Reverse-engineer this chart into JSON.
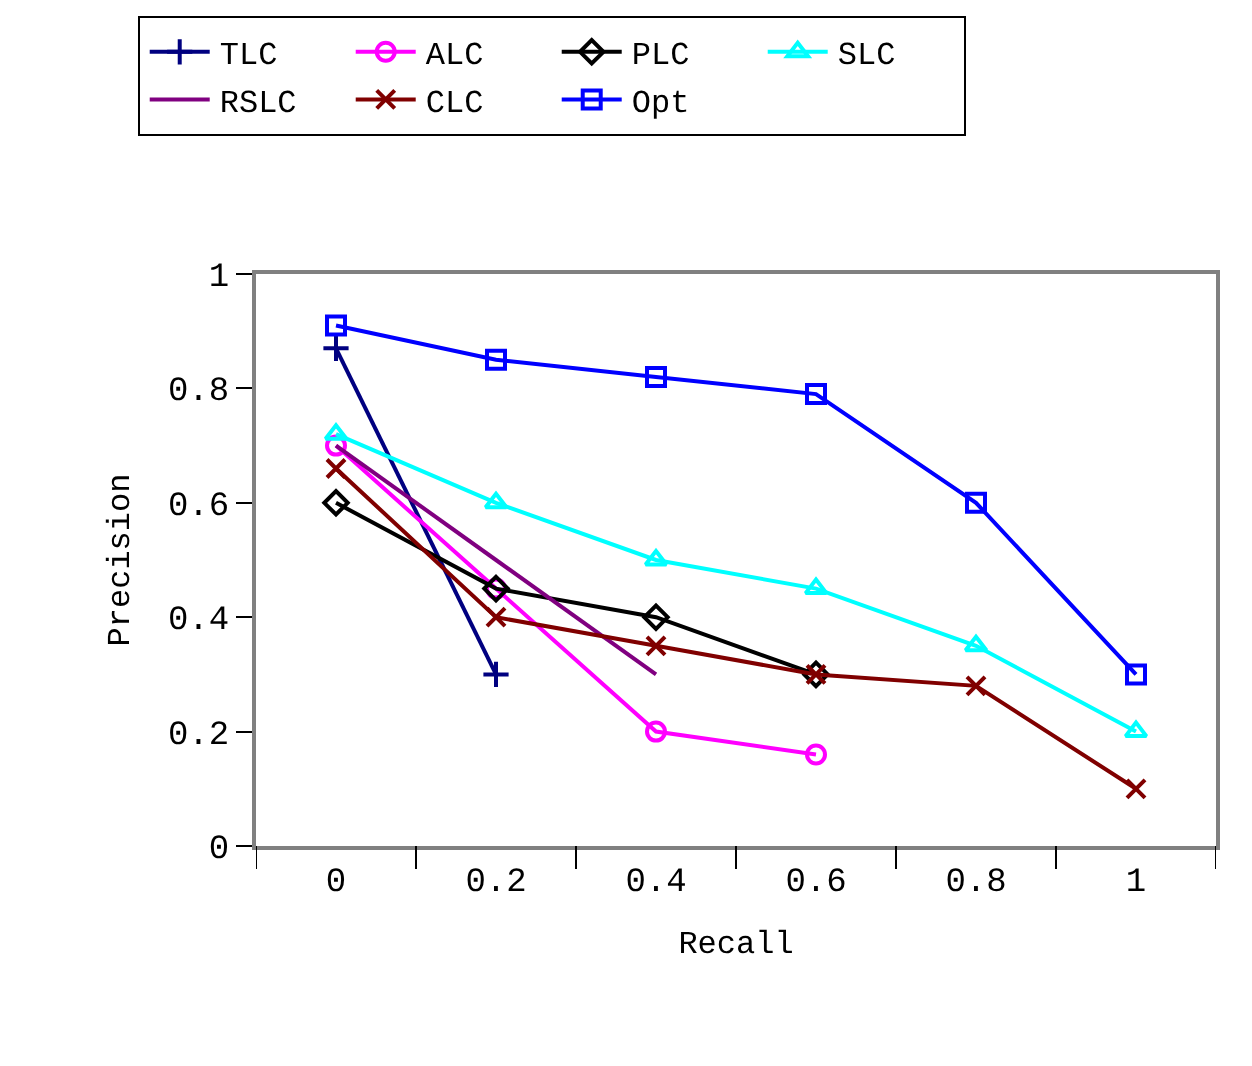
{
  "chart_data": {
    "type": "line",
    "xlabel": "Recall",
    "ylabel": "Precision",
    "categories": [
      "0",
      "0.2",
      "0.4",
      "0.6",
      "0.8",
      "1"
    ],
    "ylim": [
      0,
      1
    ],
    "yticks": [
      0,
      0.2,
      0.4,
      0.6,
      0.8,
      1
    ],
    "grid": false,
    "legend": "top",
    "series": [
      {
        "name": "TLC",
        "color": "#000080",
        "marker": "cross",
        "values": [
          0.87,
          0.3,
          null,
          null,
          null,
          null
        ]
      },
      {
        "name": "ALC",
        "color": "#ff00ff",
        "marker": "circle",
        "values": [
          0.7,
          0.45,
          0.2,
          0.16,
          null,
          null
        ]
      },
      {
        "name": "PLC",
        "color": "#000000",
        "marker": "diamond",
        "values": [
          0.6,
          0.45,
          0.4,
          0.3,
          null,
          null
        ]
      },
      {
        "name": "SLC",
        "color": "#00ffff",
        "marker": "triangle",
        "values": [
          0.72,
          0.6,
          0.5,
          0.45,
          0.35,
          0.2
        ]
      },
      {
        "name": "RSLC",
        "color": "#800080",
        "marker": "none",
        "values": [
          0.7,
          0.5,
          0.3,
          null,
          null,
          null
        ]
      },
      {
        "name": "CLC",
        "color": "#800000",
        "marker": "x",
        "values": [
          0.66,
          0.4,
          0.35,
          0.3,
          0.28,
          0.1
        ]
      },
      {
        "name": "Opt",
        "color": "#0000ff",
        "marker": "square",
        "values": [
          0.91,
          0.85,
          0.82,
          0.79,
          0.6,
          0.3
        ]
      }
    ]
  }
}
